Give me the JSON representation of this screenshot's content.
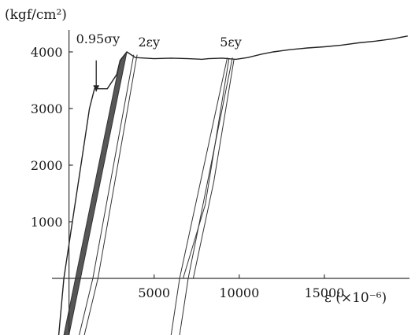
{
  "chart_data": {
    "type": "line",
    "title": "",
    "ylabel": "(kgf/cm²)",
    "xlabel": "ε (×10⁻⁶)",
    "xlim": [
      -1000,
      20000
    ],
    "ylim": [
      -1000,
      4500
    ],
    "x_ticks": [
      5000,
      10000,
      15000
    ],
    "y_ticks": [
      1000,
      2000,
      3000,
      4000
    ],
    "annotations": [
      {
        "text": "0.95σy",
        "x": 1700,
        "y": 4150
      },
      {
        "text": "2εy",
        "x": 4700,
        "y": 4100
      },
      {
        "text": "5εy",
        "x": 9500,
        "y": 4100
      }
    ],
    "arrow": {
      "from": [
        1600,
        3850
      ],
      "to": [
        1600,
        3300
      ]
    },
    "series": [
      {
        "values": [
          [
            -600,
            -1000
          ],
          [
            -300,
            0
          ],
          [
            200,
            1000
          ],
          [
            700,
            2000
          ],
          [
            1200,
            3000
          ],
          [
            1500,
            3350
          ],
          [
            2250,
            3350
          ],
          [
            2800,
            3600
          ],
          [
            3000,
            3850
          ],
          [
            3400,
            4000
          ],
          [
            3900,
            3900
          ],
          [
            5000,
            3880
          ],
          [
            6000,
            3890
          ],
          [
            7000,
            3880
          ],
          [
            7800,
            3870
          ],
          [
            8200,
            3880
          ],
          [
            9000,
            3890
          ],
          [
            9800,
            3870
          ],
          [
            10500,
            3900
          ],
          [
            11300,
            3960
          ],
          [
            12000,
            4000
          ],
          [
            13000,
            4040
          ],
          [
            14000,
            4070
          ],
          [
            15000,
            4090
          ],
          [
            16000,
            4120
          ],
          [
            17000,
            4160
          ],
          [
            18000,
            4190
          ],
          [
            19000,
            4230
          ],
          [
            19900,
            4280
          ]
        ]
      },
      {
        "values": [
          [
            -300,
            -1000
          ],
          [
            3000,
            3850
          ]
        ]
      },
      {
        "values": [
          [
            0,
            -1000
          ],
          [
            3400,
            4000
          ]
        ]
      },
      {
        "values": [
          [
            600,
            -1000
          ],
          [
            1400,
            0
          ],
          [
            3800,
            3950
          ]
        ]
      },
      {
        "values": [
          [
            900,
            -1000
          ],
          [
            1700,
            0
          ],
          [
            4000,
            3950
          ]
        ]
      },
      {
        "values": [
          [
            6000,
            -1000
          ],
          [
            6500,
            0
          ],
          [
            9300,
            3900
          ]
        ]
      },
      {
        "values": [
          [
            6500,
            -1000
          ],
          [
            7000,
            0
          ],
          [
            9600,
            3900
          ]
        ]
      },
      {
        "values": [
          [
            6700,
            0
          ],
          [
            8000,
            1300
          ],
          [
            9400,
            3880
          ]
        ]
      },
      {
        "values": [
          [
            7300,
            0
          ],
          [
            8500,
            1700
          ],
          [
            9700,
            3880
          ]
        ]
      }
    ],
    "grid": false
  }
}
